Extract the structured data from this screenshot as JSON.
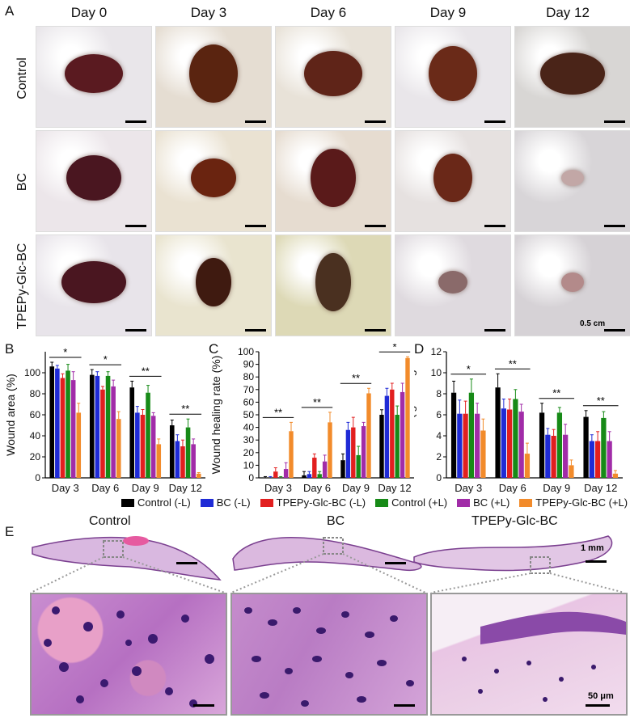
{
  "panel_labels": [
    "A",
    "B",
    "C",
    "D",
    "E"
  ],
  "days": [
    "Day 0",
    "Day 3",
    "Day 6",
    "Day 9",
    "Day 12"
  ],
  "rows": [
    "Control",
    "BC",
    "TPEPy-Glc-BC"
  ],
  "scale_a": "0.5 cm",
  "legend": [
    {
      "name": "Control (-L)",
      "color": "#000000"
    },
    {
      "name": "BC (-L)",
      "color": "#1f2bd6"
    },
    {
      "name": "TPEPy-Glc-BC (-L)",
      "color": "#e21f1f"
    },
    {
      "name": "Control (+L)",
      "color": "#178a17"
    },
    {
      "name": "BC (+L)",
      "color": "#a12ca8"
    },
    {
      "name": "TPEPy-Glc-BC (+L)",
      "color": "#f28b2b"
    }
  ],
  "histo_titles": [
    "Control",
    "BC",
    "TPEPy-Glc-BC"
  ],
  "scale_mm": "1 mm",
  "scale_um": "50 μm",
  "chart_data": [
    {
      "type": "bar",
      "ylabel": "Wound area (%)",
      "ylim": [
        0,
        120
      ],
      "yticks": [
        0,
        20,
        40,
        60,
        80,
        100
      ],
      "categories": [
        "Day 3",
        "Day 6",
        "Day 9",
        "Day 12"
      ],
      "series": [
        {
          "name": "Control (-L)",
          "values": [
            106,
            98,
            86,
            50
          ],
          "errors": [
            4,
            5,
            6,
            5
          ]
        },
        {
          "name": "BC (-L)",
          "values": [
            104,
            97,
            62,
            35
          ],
          "errors": [
            3,
            4,
            6,
            6
          ]
        },
        {
          "name": "TPEPy-Glc-BC (-L)",
          "values": [
            95,
            84,
            60,
            30
          ],
          "errors": [
            4,
            3,
            5,
            6
          ]
        },
        {
          "name": "Control (+L)",
          "values": [
            102,
            97,
            81,
            48
          ],
          "errors": [
            6,
            4,
            7,
            8
          ]
        },
        {
          "name": "BC (+L)",
          "values": [
            93,
            87,
            59,
            32
          ],
          "errors": [
            8,
            6,
            3,
            5
          ]
        },
        {
          "name": "TPEPy-Glc-BC (+L)",
          "values": [
            62,
            56,
            32,
            4
          ],
          "errors": [
            9,
            7,
            5,
            1
          ]
        }
      ],
      "significance": [
        {
          "label": "*",
          "from": 0,
          "to": 4
        },
        {
          "label": "*",
          "from": 1,
          "to": 5
        },
        {
          "label": "**",
          "from": 2,
          "to": 6
        },
        {
          "label": "**",
          "from": 3,
          "to": 7
        }
      ]
    },
    {
      "type": "bar",
      "ylabel": "Wound healing rate (%)",
      "ylim": [
        0,
        100
      ],
      "yticks": [
        0,
        10,
        20,
        30,
        40,
        50,
        60,
        70,
        80,
        90,
        100
      ],
      "categories": [
        "Day 3",
        "Day 6",
        "Day 9",
        "Day 12"
      ],
      "series": [
        {
          "name": "Control (-L)",
          "values": [
            0,
            2,
            14,
            50
          ],
          "errors": [
            1,
            3,
            5,
            4
          ]
        },
        {
          "name": "BC (-L)",
          "values": [
            0,
            3,
            38,
            65
          ],
          "errors": [
            1,
            2,
            6,
            6
          ]
        },
        {
          "name": "TPEPy-Glc-BC (-L)",
          "values": [
            5,
            16,
            40,
            70
          ],
          "errors": [
            3,
            3,
            8,
            5
          ]
        },
        {
          "name": "Control (+L)",
          "values": [
            0,
            3,
            18,
            50
          ],
          "errors": [
            1,
            2,
            7,
            7
          ]
        },
        {
          "name": "BC (+L)",
          "values": [
            7,
            13,
            41,
            68
          ],
          "errors": [
            5,
            5,
            3,
            7
          ]
        },
        {
          "name": "TPEPy-Glc-BC (+L)",
          "values": [
            37,
            44,
            67,
            95
          ],
          "errors": [
            7,
            8,
            4,
            1
          ]
        }
      ],
      "significance": [
        {
          "label": "**",
          "from": 0,
          "to": 4
        },
        {
          "label": "**",
          "from": 1,
          "to": 5
        },
        {
          "label": "**",
          "from": 2,
          "to": 6
        },
        {
          "label": "*",
          "from": 3,
          "to": 7
        }
      ]
    },
    {
      "type": "bar",
      "ylabel": "Bacterial count (lg CFU/g tissue)",
      "ylim": [
        0,
        12
      ],
      "yticks": [
        0,
        2,
        4,
        6,
        8,
        10,
        12
      ],
      "categories": [
        "Day 3",
        "Day 6",
        "Day 9",
        "Day 12"
      ],
      "series": [
        {
          "name": "Control (-L)",
          "values": [
            8.1,
            8.6,
            6.2,
            5.8
          ],
          "errors": [
            1.1,
            1.3,
            0.9,
            0.6
          ]
        },
        {
          "name": "BC (-L)",
          "values": [
            6.1,
            6.6,
            4.1,
            3.5
          ],
          "errors": [
            1.3,
            0.9,
            0.6,
            0.6
          ]
        },
        {
          "name": "TPEPy-Glc-BC (-L)",
          "values": [
            6.1,
            6.5,
            4.0,
            3.5
          ],
          "errors": [
            1.2,
            1.0,
            0.6,
            0.9
          ]
        },
        {
          "name": "Control (+L)",
          "values": [
            8.1,
            7.5,
            6.2,
            5.7
          ],
          "errors": [
            1.3,
            0.9,
            0.5,
            0.6
          ]
        },
        {
          "name": "BC (+L)",
          "values": [
            6.1,
            6.3,
            4.1,
            3.5
          ],
          "errors": [
            1.0,
            0.7,
            1.0,
            0.9
          ]
        },
        {
          "name": "TPEPy-Glc-BC (+L)",
          "values": [
            4.5,
            2.3,
            1.2,
            0.4
          ],
          "errors": [
            1.1,
            1.0,
            0.5,
            0.3
          ]
        }
      ],
      "significance": [
        {
          "label": "*",
          "from": 0,
          "to": 4
        },
        {
          "label": "**",
          "from": 1,
          "to": 5
        },
        {
          "label": "**",
          "from": 2,
          "to": 6
        },
        {
          "label": "**",
          "from": 3,
          "to": 7
        }
      ]
    }
  ]
}
